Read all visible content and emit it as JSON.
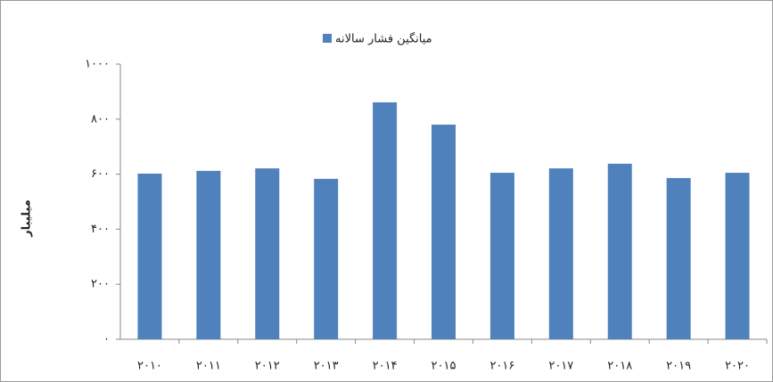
{
  "chart_data": {
    "type": "bar",
    "y_label": "میلیبار",
    "categories": [
      "۲۰۱۰",
      "۲۰۱۱",
      "۲۰۱۲",
      "۲۰۱۳",
      "۲۰۱۴",
      "۲۰۱۵",
      "۲۰۱۶",
      "۲۰۱۷",
      "۲۰۱۸",
      "۲۰۱۹",
      "۲۰۲۰"
    ],
    "series": [
      {
        "name": "میانگین فشار سالانه",
        "color": "#4f81bd",
        "values": [
          602,
          612,
          621,
          583,
          861,
          780,
          605,
          621,
          638,
          586,
          605
        ]
      }
    ],
    "ylim": [
      0,
      1000
    ],
    "yticks": [
      {
        "value": 0,
        "label": "۰"
      },
      {
        "value": 200,
        "label": "۲۰۰"
      },
      {
        "value": 400,
        "label": "۴۰۰"
      },
      {
        "value": 600,
        "label": "۶۰۰"
      },
      {
        "value": 800,
        "label": "۸۰۰"
      },
      {
        "value": 1000,
        "label": "۱۰۰۰"
      }
    ],
    "legend": "top"
  }
}
